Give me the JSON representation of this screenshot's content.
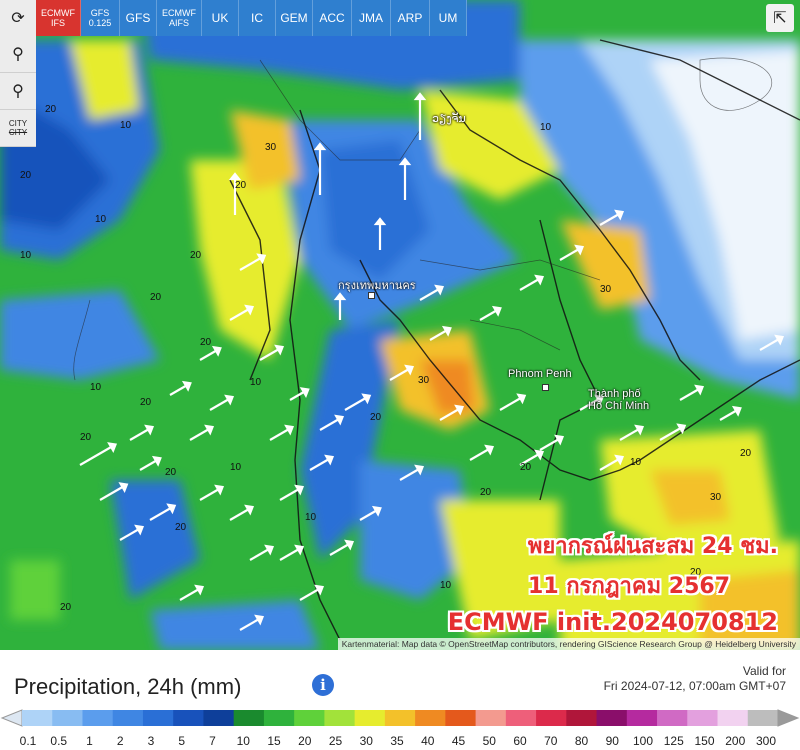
{
  "models": [
    {
      "label": "ECMWF",
      "sub": "IFS",
      "active": true
    },
    {
      "label": "GFS",
      "sub": "0.125",
      "active": false
    },
    {
      "label": "GFS",
      "sub": "",
      "active": false
    },
    {
      "label": "ECMWF",
      "sub": "AIFS",
      "active": false
    },
    {
      "label": "UK",
      "sub": "",
      "active": false
    },
    {
      "label": "IC",
      "sub": "",
      "active": false
    },
    {
      "label": "GEM",
      "sub": "",
      "active": false
    },
    {
      "label": "ACC",
      "sub": "",
      "active": false
    },
    {
      "label": "JMA",
      "sub": "",
      "active": false
    },
    {
      "label": "ARP",
      "sub": "",
      "active": false
    },
    {
      "label": "UM",
      "sub": "",
      "active": false
    }
  ],
  "tools": {
    "city_line1": "CITY",
    "city_line2": "CITY"
  },
  "overlay": {
    "line1": "พยากรณ์ฝนสะสม 24 ชม.",
    "line2": "11 กรกฎาคม 2567",
    "line3": "ECMWF init.2024070812"
  },
  "attribution": "Kartenmaterial: Map data © OpenStreetMap contributors, rendering GIScience Research Group @ Heidelberg University",
  "cities": {
    "phnom_penh": "Phnom Penh",
    "hcm_line1": "Thành phố",
    "hcm_line2": "Hồ Chí Minh",
    "bangkok": "กรุงเทพมหานคร",
    "vientiane": "ວຽງຈັນ"
  },
  "legend": {
    "title": "Precipitation, 24h (mm)",
    "valid_line1": "Valid for",
    "valid_line2": "Fri 2024-07-12, 07:00am GMT+07",
    "ticks": [
      "0.1",
      "0.5",
      "1",
      "2",
      "3",
      "5",
      "7",
      "10",
      "15",
      "20",
      "25",
      "30",
      "35",
      "40",
      "45",
      "50",
      "60",
      "70",
      "80",
      "90",
      "100",
      "125",
      "150",
      "200",
      "300"
    ],
    "colors": [
      "#aed3f7",
      "#88bcf2",
      "#5b9ded",
      "#3f86e3",
      "#2a6fd6",
      "#1852bb",
      "#0e3f9a",
      "#1a8a2e",
      "#2fb23c",
      "#5fd13a",
      "#a2e23a",
      "#e6ec2e",
      "#f3c12a",
      "#ef8a22",
      "#e4591c",
      "#f39a8f",
      "#ee5f7a",
      "#dc2a4b",
      "#b0163a",
      "#8a0e6a",
      "#b52a9f",
      "#d06ac4",
      "#e3a0de",
      "#f2d2f0",
      "#bdbdbd"
    ]
  },
  "map_labels": [
    "20",
    "10",
    "20",
    "20",
    "10",
    "30",
    "20",
    "10",
    "10",
    "20",
    "20",
    "20",
    "10",
    "20",
    "30",
    "30",
    "20",
    "20",
    "10",
    "10",
    "20",
    "10",
    "20",
    "20",
    "10",
    "20",
    "20",
    "30",
    "10",
    "20"
  ]
}
